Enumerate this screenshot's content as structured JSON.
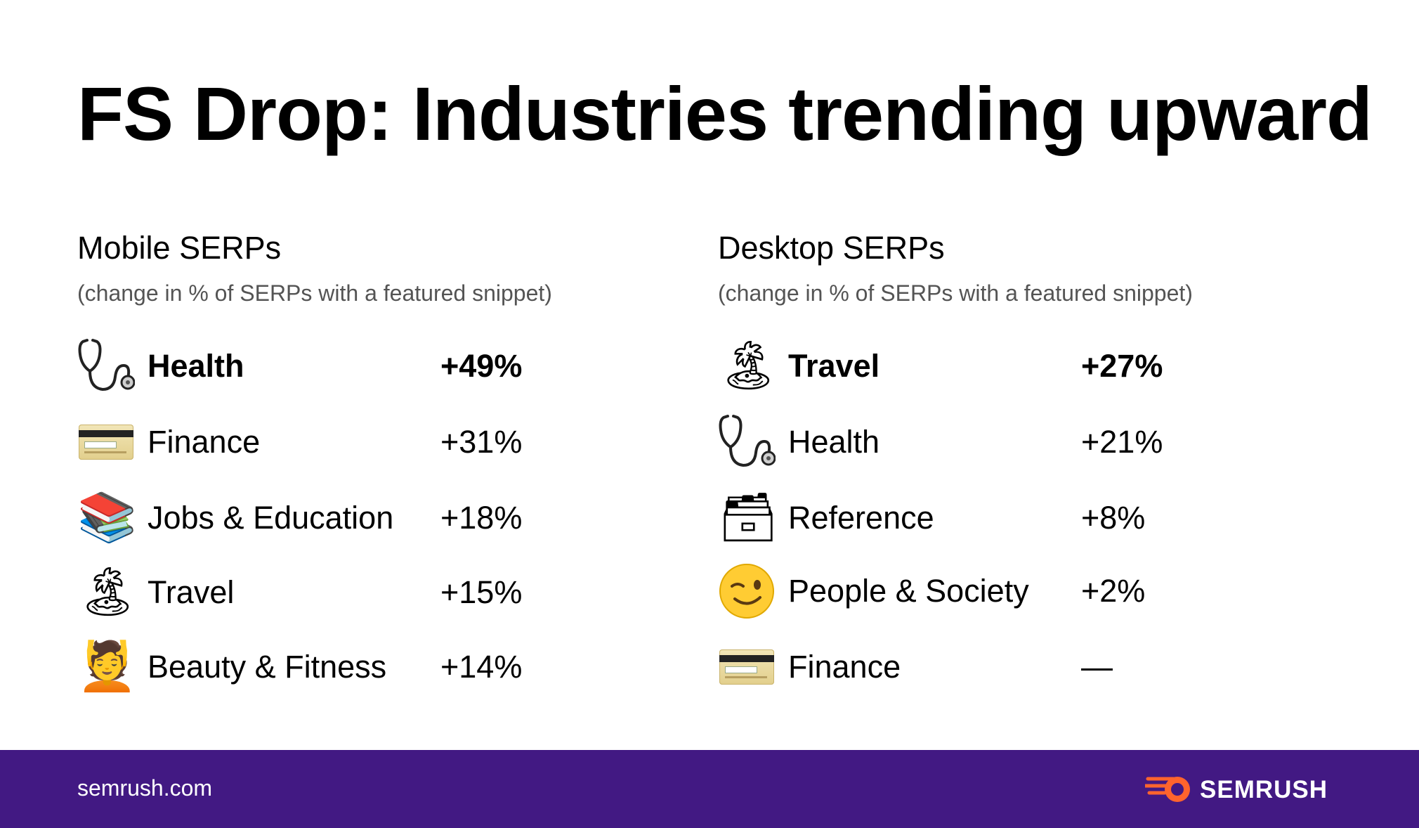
{
  "title": "FS Drop: Industries trending upward",
  "mobile": {
    "heading": "Mobile SERPs",
    "subheading": "(change in % of SERPs with a featured snippet)",
    "rows": [
      {
        "icon": "stethoscope-icon",
        "label": "Health",
        "value": "+49%"
      },
      {
        "icon": "credit-card-icon",
        "label": "Finance",
        "value": "+31%"
      },
      {
        "icon": "books-icon",
        "label": "Jobs & Education",
        "value": "+18%"
      },
      {
        "icon": "beach-umbrella-icon",
        "label": "Travel",
        "value": "+15%"
      },
      {
        "icon": "person-massage-icon",
        "label": "Beauty & Fitness",
        "value": "+14%"
      }
    ]
  },
  "desktop": {
    "heading": "Desktop SERPs",
    "subheading": "(change in % of SERPs with a featured snippet)",
    "rows": [
      {
        "icon": "beach-umbrella-icon",
        "label": "Travel",
        "value": "+27%"
      },
      {
        "icon": "stethoscope-icon",
        "label": "Health",
        "value": "+21%"
      },
      {
        "icon": "card-file-box-icon",
        "label": "Reference",
        "value": "+8%"
      },
      {
        "icon": "winking-face-icon",
        "label": "People & Society",
        "value": "+2%"
      },
      {
        "icon": "credit-card-icon",
        "label": "Finance",
        "value": "—"
      }
    ]
  },
  "footer": {
    "url": "semrush.com",
    "brand": "SEMRUSH"
  },
  "colors": {
    "footer_bg": "#421983",
    "brand_accent": "#ff642d"
  }
}
